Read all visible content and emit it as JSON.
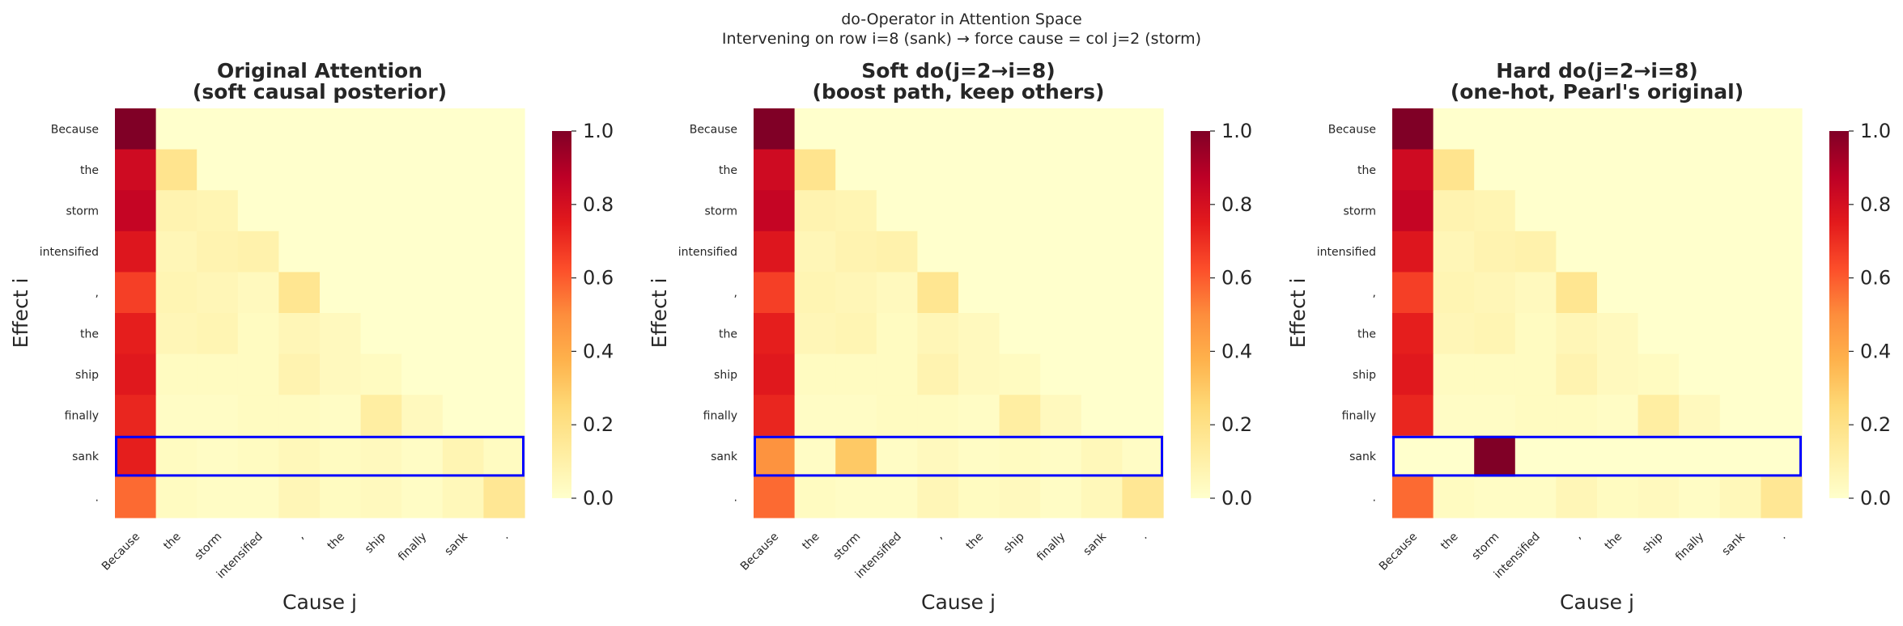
{
  "figure": {
    "suptitle_line1": "do-Operator in Attention Space",
    "suptitle_line2": "Intervening on row i=8 (sank) → force cause = col j=2 (storm)"
  },
  "colormap": [
    "#ffffcc",
    "#ffeda0",
    "#fed976",
    "#feb24c",
    "#fd8d3c",
    "#fc4e2a",
    "#e31a1c",
    "#bd0026",
    "#800026"
  ],
  "highlight_color": "#0000ff",
  "chart_data": [
    {
      "type": "heatmap",
      "title_line1": "Original Attention",
      "title_line2": "(soft causal posterior)",
      "xlabel": "Cause j",
      "ylabel": "Effect i",
      "x_ticklabels": [
        "Because",
        "the",
        "storm",
        "intensified",
        ",",
        "the",
        "ship",
        "finally",
        "sank",
        "."
      ],
      "y_ticklabels": [
        "Because",
        "the",
        "storm",
        "intensified",
        ",",
        "the",
        "ship",
        "finally",
        "sank",
        "."
      ],
      "colorbar_ticks": [
        "0.0",
        "0.2",
        "0.4",
        "0.6",
        "0.8",
        "1.0"
      ],
      "vmin": 0,
      "vmax": 1,
      "highlight_row": 8,
      "values": [
        [
          1.0,
          0.0,
          0.0,
          0.0,
          0.0,
          0.0,
          0.0,
          0.0,
          0.0,
          0.0
        ],
        [
          0.82,
          0.18,
          0.0,
          0.0,
          0.0,
          0.0,
          0.0,
          0.0,
          0.0,
          0.0
        ],
        [
          0.85,
          0.08,
          0.07,
          0.0,
          0.0,
          0.0,
          0.0,
          0.0,
          0.0,
          0.0
        ],
        [
          0.77,
          0.06,
          0.08,
          0.09,
          0.0,
          0.0,
          0.0,
          0.0,
          0.0,
          0.0
        ],
        [
          0.66,
          0.07,
          0.06,
          0.04,
          0.17,
          0.0,
          0.0,
          0.0,
          0.0,
          0.0
        ],
        [
          0.74,
          0.06,
          0.07,
          0.03,
          0.06,
          0.04,
          0.0,
          0.0,
          0.0,
          0.0
        ],
        [
          0.76,
          0.03,
          0.03,
          0.03,
          0.08,
          0.04,
          0.03,
          0.0,
          0.0,
          0.0
        ],
        [
          0.72,
          0.02,
          0.02,
          0.03,
          0.03,
          0.02,
          0.12,
          0.04,
          0.0,
          0.0
        ],
        [
          0.74,
          0.03,
          0.02,
          0.03,
          0.05,
          0.03,
          0.04,
          0.02,
          0.07,
          0.03
        ],
        [
          0.57,
          0.03,
          0.02,
          0.02,
          0.06,
          0.03,
          0.04,
          0.02,
          0.05,
          0.16
        ]
      ]
    },
    {
      "type": "heatmap",
      "title_line1": "Soft do(j=2→i=8)",
      "title_line2": "(boost path, keep others)",
      "xlabel": "Cause j",
      "ylabel": "Effect i",
      "x_ticklabels": [
        "Because",
        "the",
        "storm",
        "intensified",
        ",",
        "the",
        "ship",
        "finally",
        "sank",
        "."
      ],
      "y_ticklabels": [
        "Because",
        "the",
        "storm",
        "intensified",
        ",",
        "the",
        "ship",
        "finally",
        "sank",
        "."
      ],
      "colorbar_ticks": [
        "0.0",
        "0.2",
        "0.4",
        "0.6",
        "0.8",
        "1.0"
      ],
      "vmin": 0,
      "vmax": 1,
      "highlight_row": 8,
      "values": [
        [
          1.0,
          0.0,
          0.0,
          0.0,
          0.0,
          0.0,
          0.0,
          0.0,
          0.0,
          0.0
        ],
        [
          0.82,
          0.18,
          0.0,
          0.0,
          0.0,
          0.0,
          0.0,
          0.0,
          0.0,
          0.0
        ],
        [
          0.85,
          0.08,
          0.07,
          0.0,
          0.0,
          0.0,
          0.0,
          0.0,
          0.0,
          0.0
        ],
        [
          0.77,
          0.06,
          0.08,
          0.09,
          0.0,
          0.0,
          0.0,
          0.0,
          0.0,
          0.0
        ],
        [
          0.66,
          0.07,
          0.06,
          0.04,
          0.17,
          0.0,
          0.0,
          0.0,
          0.0,
          0.0
        ],
        [
          0.74,
          0.06,
          0.07,
          0.03,
          0.06,
          0.04,
          0.0,
          0.0,
          0.0,
          0.0
        ],
        [
          0.76,
          0.03,
          0.03,
          0.03,
          0.08,
          0.04,
          0.03,
          0.0,
          0.0,
          0.0
        ],
        [
          0.72,
          0.02,
          0.02,
          0.03,
          0.03,
          0.02,
          0.12,
          0.04,
          0.0,
          0.0
        ],
        [
          0.48,
          0.02,
          0.3,
          0.02,
          0.04,
          0.02,
          0.03,
          0.02,
          0.05,
          0.02
        ],
        [
          0.57,
          0.03,
          0.02,
          0.02,
          0.06,
          0.03,
          0.04,
          0.02,
          0.05,
          0.16
        ]
      ]
    },
    {
      "type": "heatmap",
      "title_line1": "Hard do(j=2→i=8)",
      "title_line2": "(one-hot, Pearl's original)",
      "xlabel": "Cause j",
      "ylabel": "Effect i",
      "x_ticklabels": [
        "Because",
        "the",
        "storm",
        "intensified",
        ",",
        "the",
        "ship",
        "finally",
        "sank",
        "."
      ],
      "y_ticklabels": [
        "Because",
        "the",
        "storm",
        "intensified",
        ",",
        "the",
        "ship",
        "finally",
        "sank",
        "."
      ],
      "colorbar_ticks": [
        "0.0",
        "0.2",
        "0.4",
        "0.6",
        "0.8",
        "1.0"
      ],
      "vmin": 0,
      "vmax": 1,
      "highlight_row": 8,
      "values": [
        [
          1.0,
          0.0,
          0.0,
          0.0,
          0.0,
          0.0,
          0.0,
          0.0,
          0.0,
          0.0
        ],
        [
          0.82,
          0.18,
          0.0,
          0.0,
          0.0,
          0.0,
          0.0,
          0.0,
          0.0,
          0.0
        ],
        [
          0.85,
          0.08,
          0.07,
          0.0,
          0.0,
          0.0,
          0.0,
          0.0,
          0.0,
          0.0
        ],
        [
          0.77,
          0.06,
          0.08,
          0.09,
          0.0,
          0.0,
          0.0,
          0.0,
          0.0,
          0.0
        ],
        [
          0.66,
          0.07,
          0.06,
          0.04,
          0.17,
          0.0,
          0.0,
          0.0,
          0.0,
          0.0
        ],
        [
          0.74,
          0.06,
          0.07,
          0.03,
          0.06,
          0.04,
          0.0,
          0.0,
          0.0,
          0.0
        ],
        [
          0.76,
          0.03,
          0.03,
          0.03,
          0.08,
          0.04,
          0.03,
          0.0,
          0.0,
          0.0
        ],
        [
          0.72,
          0.02,
          0.02,
          0.03,
          0.03,
          0.02,
          0.12,
          0.04,
          0.0,
          0.0
        ],
        [
          0.0,
          0.0,
          1.0,
          0.0,
          0.0,
          0.0,
          0.0,
          0.0,
          0.0,
          0.0
        ],
        [
          0.57,
          0.03,
          0.02,
          0.02,
          0.06,
          0.03,
          0.04,
          0.02,
          0.05,
          0.16
        ]
      ]
    }
  ]
}
